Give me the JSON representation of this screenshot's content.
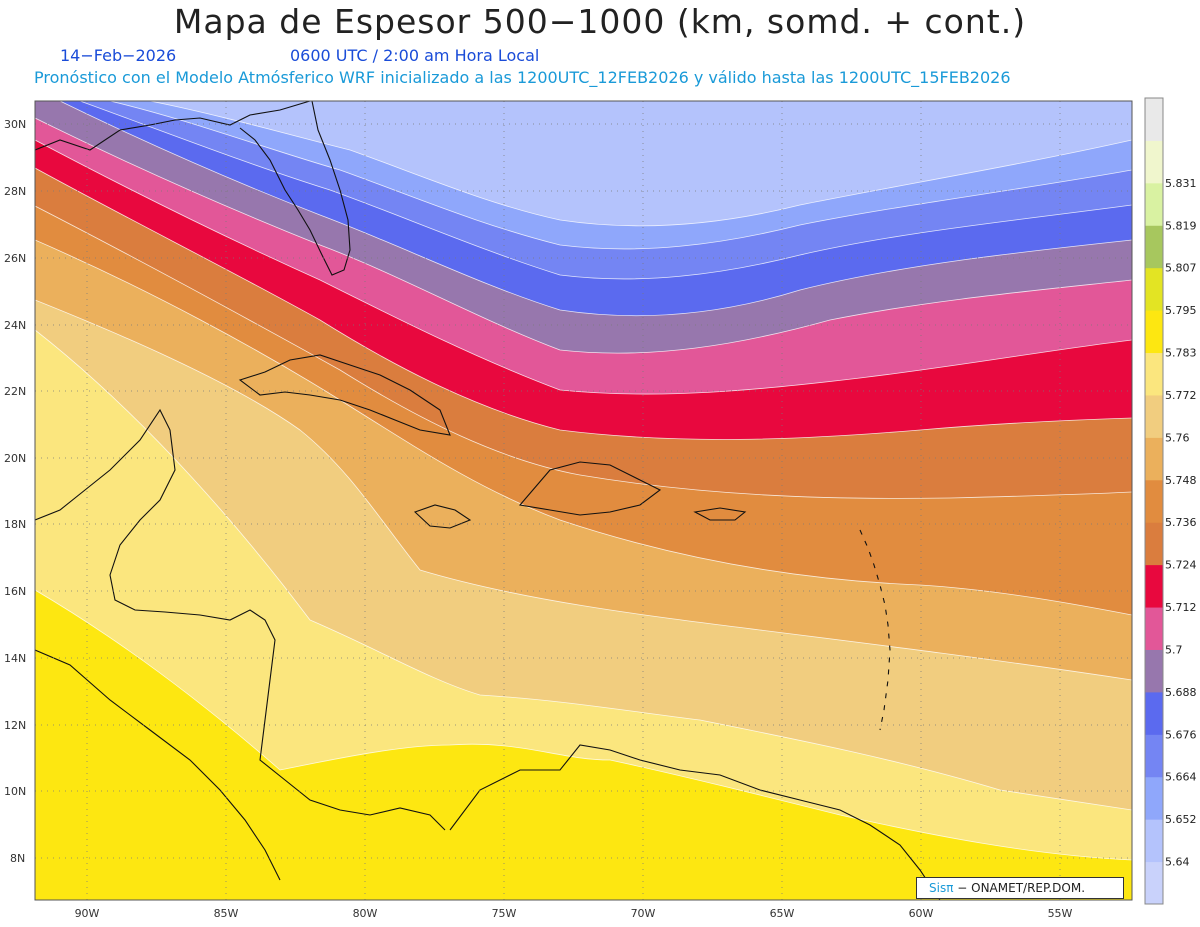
{
  "header": {
    "title": "Mapa de Espesor 500−1000 (km, somd. + cont.)",
    "date": "14−Feb−2026",
    "valid_time": "0600 UTC / 2:00 am Hora Local",
    "model_info": "Pronóstico con el Modelo Atmósferico WRF inicializado a las 1200UTC_12FEB2026 y válido hasta las  1200UTC_15FEB2026"
  },
  "map": {
    "lon_ticks": [
      "90W",
      "85W",
      "80W",
      "75W",
      "70W",
      "65W",
      "60W",
      "55W"
    ],
    "lat_ticks": [
      "30N",
      "28N",
      "26N",
      "24N",
      "22N",
      "20N",
      "18N",
      "16N",
      "14N",
      "12N",
      "10N",
      "8N"
    ],
    "lon_range": [
      -91.8,
      -52.5
    ],
    "lat_range": [
      6.7,
      30.5
    ],
    "grid": "dotted"
  },
  "colorbar": {
    "labels": [
      "5.64",
      "5.652",
      "5.664",
      "5.676",
      "5.688",
      "5.7",
      "5.712",
      "5.724",
      "5.736",
      "5.748",
      "5.76",
      "5.772",
      "5.783",
      "5.795",
      "5.807",
      "5.819",
      "5.831"
    ],
    "colors": [
      "#c9d2fb",
      "#b4c3fc",
      "#8fa7fb",
      "#7485f3",
      "#5b6aef",
      "#9777ad",
      "#e25798",
      "#e8083e",
      "#da7d3e",
      "#e18c3f",
      "#ebb05c",
      "#f1cd7f",
      "#fbe67e",
      "#fde711",
      "#e3e423",
      "#a7c75e",
      "#d9f2a2",
      "#f0f6cd",
      "#e9e9e9"
    ]
  },
  "credit": {
    "sis": "Sisπ",
    "text": "− ONAMET/REP.DOM."
  }
}
